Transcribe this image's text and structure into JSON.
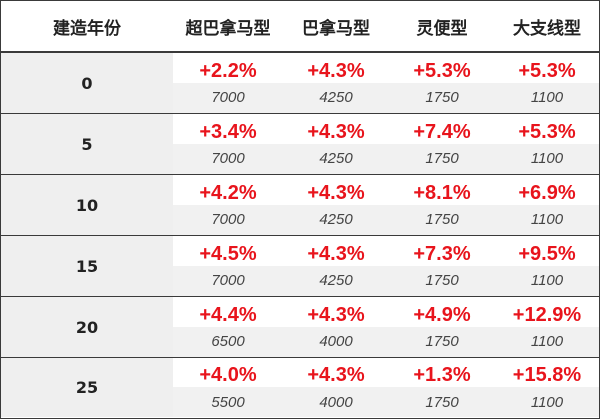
{
  "header": {
    "year": "建造年份",
    "col1": "超巴拿马型",
    "col2": "巴拿马型",
    "col3": "灵便型",
    "col4": "大支线型"
  },
  "colors": {
    "rate": "#e8141c",
    "border": "#3a3a3a"
  },
  "rows": [
    {
      "year": "0",
      "c1": {
        "rate": "+2.2%",
        "count": "7000"
      },
      "c2": {
        "rate": "+4.3%",
        "count": "4250"
      },
      "c3": {
        "rate": "+5.3%",
        "count": "1750"
      },
      "c4": {
        "rate": "+5.3%",
        "count": "1100"
      }
    },
    {
      "year": "5",
      "c1": {
        "rate": "+3.4%",
        "count": "7000"
      },
      "c2": {
        "rate": "+4.3%",
        "count": "4250"
      },
      "c3": {
        "rate": "+7.4%",
        "count": "1750"
      },
      "c4": {
        "rate": "+5.3%",
        "count": "1100"
      }
    },
    {
      "year": "10",
      "c1": {
        "rate": "+4.2%",
        "count": "7000"
      },
      "c2": {
        "rate": "+4.3%",
        "count": "4250"
      },
      "c3": {
        "rate": "+8.1%",
        "count": "1750"
      },
      "c4": {
        "rate": "+6.9%",
        "count": "1100"
      }
    },
    {
      "year": "15",
      "c1": {
        "rate": "+4.5%",
        "count": "7000"
      },
      "c2": {
        "rate": "+4.3%",
        "count": "4250"
      },
      "c3": {
        "rate": "+7.3%",
        "count": "1750"
      },
      "c4": {
        "rate": "+9.5%",
        "count": "1100"
      }
    },
    {
      "year": "20",
      "c1": {
        "rate": "+4.4%",
        "count": "6500"
      },
      "c2": {
        "rate": "+4.3%",
        "count": "4000"
      },
      "c3": {
        "rate": "+4.9%",
        "count": "1750"
      },
      "c4": {
        "rate": "+12.9%",
        "count": "1100"
      }
    },
    {
      "year": "25",
      "c1": {
        "rate": "+4.0%",
        "count": "5500"
      },
      "c2": {
        "rate": "+4.3%",
        "count": "4000"
      },
      "c3": {
        "rate": "+1.3%",
        "count": "1750"
      },
      "c4": {
        "rate": "+15.8%",
        "count": "1100"
      }
    }
  ]
}
